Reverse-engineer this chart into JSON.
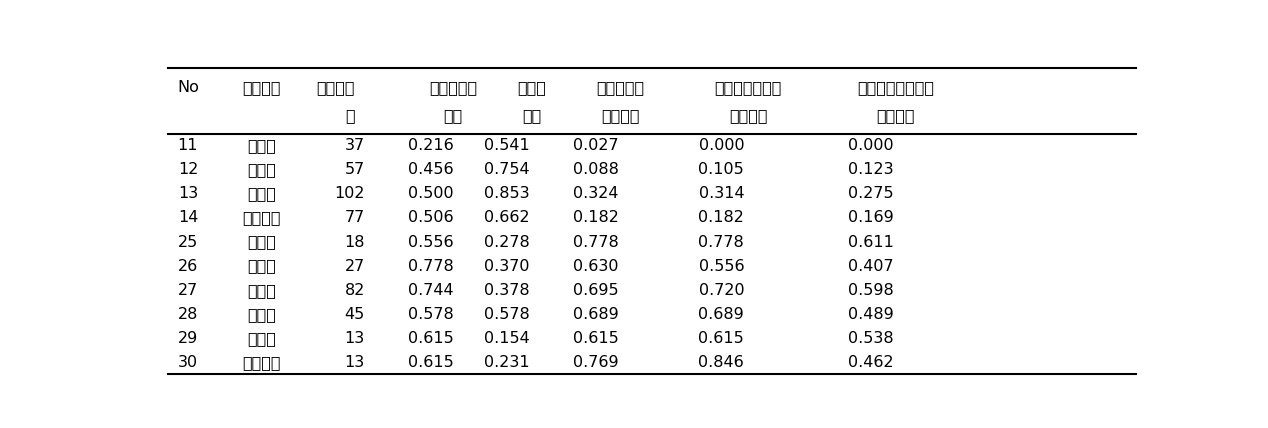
{
  "headers_line1": [
    "No",
    "都道府県",
    "サンプル",
    "出身地方言",
    "共通語",
    "対家族方言",
    "対地元友人方言",
    "対非地元友人方言"
  ],
  "headers_line2": [
    "",
    "",
    "数",
    "好き",
    "好き",
    "よく使う",
    "よく使う",
    "よく使う"
  ],
  "rows": [
    [
      "11",
      "埼玉県",
      "37",
      "0.216",
      "0.541",
      "0.027",
      "0.000",
      "0.000"
    ],
    [
      "12",
      "千葉県",
      "57",
      "0.456",
      "0.754",
      "0.088",
      "0.105",
      "0.123"
    ],
    [
      "13",
      "東京都",
      "102",
      "0.500",
      "0.853",
      "0.324",
      "0.314",
      "0.275"
    ],
    [
      "14",
      "神奈川県",
      "77",
      "0.506",
      "0.662",
      "0.182",
      "0.182",
      "0.169"
    ],
    [
      "25",
      "滋賀県",
      "18",
      "0.556",
      "0.278",
      "0.778",
      "0.778",
      "0.611"
    ],
    [
      "26",
      "京都府",
      "27",
      "0.778",
      "0.370",
      "0.630",
      "0.556",
      "0.407"
    ],
    [
      "27",
      "大阪府",
      "82",
      "0.744",
      "0.378",
      "0.695",
      "0.720",
      "0.598"
    ],
    [
      "28",
      "兵庫県",
      "45",
      "0.578",
      "0.578",
      "0.689",
      "0.689",
      "0.489"
    ],
    [
      "29",
      "奈良県",
      "13",
      "0.615",
      "0.154",
      "0.615",
      "0.615",
      "0.538"
    ],
    [
      "30",
      "和歌山県",
      "13",
      "0.615",
      "0.231",
      "0.769",
      "0.846",
      "0.462"
    ]
  ],
  "background_color": "#ffffff",
  "font_size": 11.5,
  "fig_width": 12.68,
  "fig_height": 4.28,
  "dpi": 100
}
